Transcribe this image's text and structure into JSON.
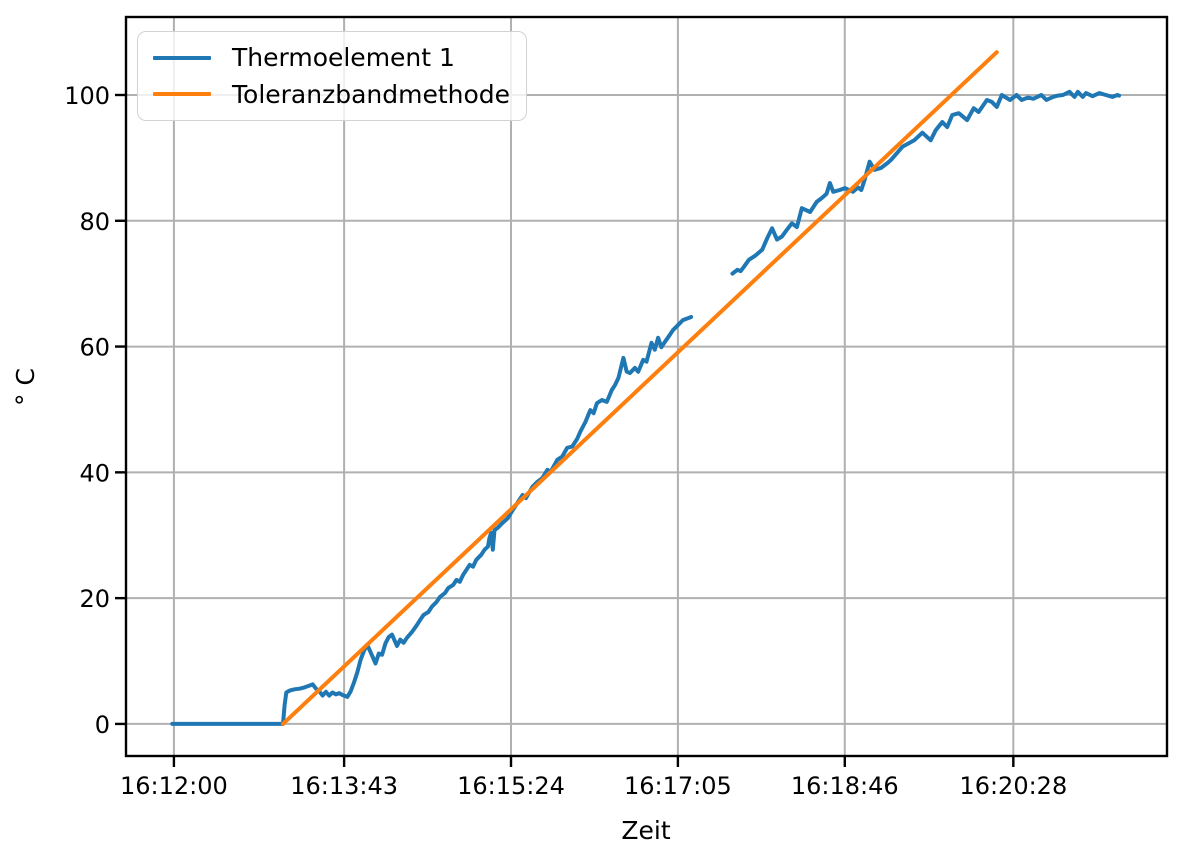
{
  "figure": {
    "background": "#ffffff",
    "text_color": "#000000",
    "grid_color": "#b0b0b0",
    "spine_color": "#000000"
  },
  "chart_data": {
    "type": "line",
    "title": "",
    "xlabel": "Zeit",
    "ylabel": "° C",
    "grid": true,
    "legend_position": "upper-left",
    "x_axis": {
      "unit": "seconds since 16:12:00",
      "range": [
        -29,
        601
      ],
      "ticks": [
        {
          "t": 0,
          "label": "16:12:00"
        },
        {
          "t": 103,
          "label": "16:13:43"
        },
        {
          "t": 204,
          "label": "16:15:24"
        },
        {
          "t": 305,
          "label": "16:17:05"
        },
        {
          "t": 406,
          "label": "16:18:46"
        },
        {
          "t": 508,
          "label": "16:20:28"
        }
      ]
    },
    "y_axis": {
      "range": [
        -5.1,
        112.4
      ],
      "ticks": [
        0,
        20,
        40,
        60,
        80,
        100
      ]
    },
    "series": [
      {
        "name": "Thermoelement 1",
        "color": "#1f77b4",
        "segments": [
          [
            [
              -1,
              0
            ],
            [
              30,
              0
            ],
            [
              55,
              0
            ],
            [
              66,
              0
            ],
            [
              67,
              3.0
            ],
            [
              68,
              5.0
            ],
            [
              70,
              5.3
            ],
            [
              73,
              5.5
            ],
            [
              76,
              5.6
            ],
            [
              79,
              5.8
            ],
            [
              82,
              6.1
            ],
            [
              84,
              6.3
            ],
            [
              86,
              5.6
            ],
            [
              88,
              5.2
            ],
            [
              90,
              4.5
            ],
            [
              92,
              5.1
            ],
            [
              94,
              4.5
            ],
            [
              96,
              5.0
            ],
            [
              98,
              4.7
            ],
            [
              100,
              4.9
            ],
            [
              102,
              4.6
            ],
            [
              105,
              4.3
            ],
            [
              107,
              5.2
            ],
            [
              109,
              6.6
            ],
            [
              111,
              8.2
            ],
            [
              113,
              10.2
            ],
            [
              115,
              11.6
            ],
            [
              117,
              12.6
            ],
            [
              119,
              11.4
            ],
            [
              122,
              9.6
            ],
            [
              124,
              11.2
            ],
            [
              126,
              11.0
            ],
            [
              128,
              12.8
            ],
            [
              130,
              13.8
            ],
            [
              132,
              14.2
            ],
            [
              135,
              12.4
            ],
            [
              137,
              13.4
            ],
            [
              139,
              12.9
            ],
            [
              141,
              13.7
            ],
            [
              144,
              14.6
            ],
            [
              147,
              15.7
            ],
            [
              149,
              16.5
            ],
            [
              151,
              17.3
            ],
            [
              154,
              17.8
            ],
            [
              156,
              18.6
            ],
            [
              159,
              19.4
            ],
            [
              161,
              20.2
            ],
            [
              164,
              20.8
            ],
            [
              166,
              21.6
            ],
            [
              169,
              22.1
            ],
            [
              171,
              22.9
            ],
            [
              173,
              22.6
            ],
            [
              175,
              23.7
            ],
            [
              177,
              24.5
            ],
            [
              179,
              25.3
            ],
            [
              181,
              25.0
            ],
            [
              183,
              26.1
            ],
            [
              186,
              26.9
            ],
            [
              188,
              27.7
            ],
            [
              190,
              28.2
            ],
            [
              191,
              29.6
            ],
            [
              192,
              30.4
            ],
            [
              193,
              27.7
            ],
            [
              194,
              30.8
            ],
            [
              196,
              31.2
            ],
            [
              199,
              32.0
            ],
            [
              202,
              32.7
            ],
            [
              205,
              34.0
            ],
            [
              209,
              35.6
            ],
            [
              211,
              36.4
            ],
            [
              213,
              35.9
            ],
            [
              217,
              37.7
            ],
            [
              220,
              38.5
            ],
            [
              223,
              39.1
            ],
            [
              226,
              40.4
            ],
            [
              228,
              40.1
            ],
            [
              232,
              42.0
            ],
            [
              235,
              42.5
            ],
            [
              238,
              43.9
            ],
            [
              241,
              44.1
            ],
            [
              244,
              45.3
            ],
            [
              246,
              46.5
            ],
            [
              249,
              48.0
            ],
            [
              252,
              49.9
            ],
            [
              254,
              49.4
            ],
            [
              256,
              51.0
            ],
            [
              259,
              51.5
            ],
            [
              262,
              51.2
            ],
            [
              265,
              53.1
            ],
            [
              267,
              53.9
            ],
            [
              269,
              55.0
            ],
            [
              272,
              58.2
            ],
            [
              274,
              56.0
            ],
            [
              276,
              55.8
            ],
            [
              279,
              56.6
            ],
            [
              281,
              56.0
            ],
            [
              284,
              57.9
            ],
            [
              286,
              57.6
            ],
            [
              289,
              60.6
            ],
            [
              291,
              59.5
            ],
            [
              293,
              61.4
            ],
            [
              295,
              59.9
            ],
            [
              297,
              60.7
            ],
            [
              300,
              61.8
            ],
            [
              302,
              62.6
            ],
            [
              305,
              63.4
            ],
            [
              308,
              64.2
            ],
            [
              311,
              64.5
            ],
            [
              313,
              64.7
            ]
          ],
          [
            [
              338,
              71.6
            ],
            [
              341,
              72.2
            ],
            [
              343,
              72.0
            ],
            [
              345,
              72.7
            ],
            [
              348,
              73.8
            ],
            [
              352,
              74.5
            ],
            [
              356,
              75.4
            ],
            [
              359,
              77.2
            ],
            [
              362,
              78.8
            ],
            [
              365,
              77.0
            ],
            [
              368,
              77.5
            ],
            [
              371,
              78.6
            ],
            [
              374,
              79.6
            ],
            [
              377,
              79.0
            ],
            [
              380,
              82.0
            ],
            [
              385,
              81.4
            ],
            [
              389,
              83.0
            ],
            [
              392,
              83.6
            ],
            [
              395,
              84.3
            ],
            [
              397,
              86.0
            ],
            [
              399,
              84.6
            ],
            [
              403,
              84.9
            ],
            [
              406,
              85.2
            ],
            [
              411,
              84.6
            ],
            [
              414,
              85.3
            ],
            [
              416,
              84.9
            ],
            [
              418,
              86.5
            ],
            [
              421,
              89.4
            ],
            [
              424,
              88.1
            ],
            [
              428,
              88.4
            ],
            [
              432,
              89.2
            ],
            [
              434,
              89.7
            ],
            [
              441,
              91.8
            ],
            [
              448,
              92.8
            ],
            [
              453,
              94.0
            ],
            [
              458,
              92.8
            ],
            [
              461,
              94.4
            ],
            [
              465,
              95.7
            ],
            [
              468,
              94.9
            ],
            [
              471,
              96.8
            ],
            [
              475,
              97.1
            ],
            [
              480,
              96.0
            ],
            [
              484,
              97.9
            ],
            [
              487,
              97.3
            ],
            [
              492,
              99.2
            ],
            [
              495,
              98.9
            ],
            [
              498,
              98.1
            ],
            [
              501,
              100.0
            ],
            [
              506,
              99.2
            ],
            [
              510,
              100.0
            ],
            [
              513,
              99.2
            ],
            [
              517,
              99.6
            ],
            [
              520,
              99.4
            ],
            [
              525,
              100.0
            ],
            [
              528,
              99.2
            ],
            [
              532,
              99.7
            ],
            [
              535,
              99.9
            ],
            [
              538,
              100.0
            ],
            [
              542,
              100.5
            ],
            [
              545,
              99.7
            ],
            [
              547,
              100.5
            ],
            [
              550,
              99.7
            ],
            [
              552,
              100.3
            ],
            [
              556,
              99.8
            ],
            [
              560,
              100.3
            ],
            [
              564,
              100.0
            ],
            [
              568,
              99.7
            ],
            [
              571,
              100.0
            ],
            [
              572,
              99.9
            ]
          ]
        ]
      },
      {
        "name": "Toleranzbandmethode",
        "color": "#ff7f0e",
        "segments": [
          [
            [
              66,
              0
            ],
            [
              498,
              106.8
            ]
          ]
        ]
      }
    ]
  }
}
